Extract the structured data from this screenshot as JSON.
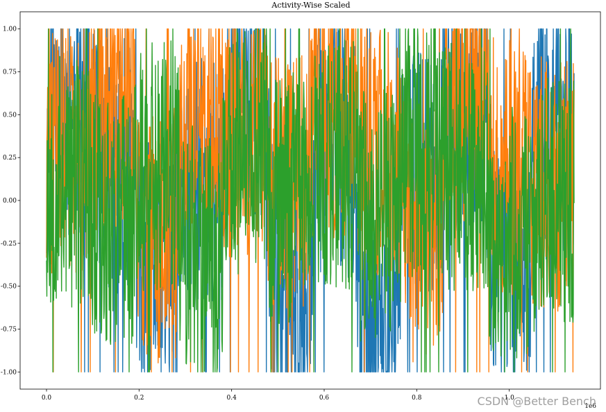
{
  "chart_data": {
    "type": "line",
    "title": "Activity-Wise Scaled",
    "xlabel": "",
    "ylabel": "",
    "x_offset_label": "1e6",
    "xlim": [
      -0.057,
      1.197
    ],
    "ylim": [
      -1.1,
      1.1
    ],
    "xticks": [
      0.0,
      0.2,
      0.4,
      0.6,
      0.8,
      1.0
    ],
    "xtick_labels": [
      "0.0",
      "0.2",
      "0.4",
      "0.6",
      "0.8",
      "1.0"
    ],
    "yticks": [
      1.0,
      0.75,
      0.5,
      0.25,
      0.0,
      -0.25,
      -0.5,
      -0.75,
      -1.0
    ],
    "ytick_labels": [
      "1.00",
      "0.75",
      "0.50",
      "0.25",
      "0.00",
      "-0.25",
      "-0.50",
      "-0.75",
      "-1.00"
    ],
    "grid": false,
    "legend": "none",
    "x_range": [
      0.0,
      1.14
    ],
    "series": [
      {
        "color": "#1f77b4",
        "seed": 11,
        "amplitude_profile": [
          0.55,
          0.2,
          -0.4,
          0.1,
          0.6,
          -0.5,
          0.3,
          -0.7,
          0.2,
          0.5,
          -0.3,
          0.4
        ]
      },
      {
        "color": "#ff7f0e",
        "seed": 29,
        "amplitude_profile": [
          0.3,
          0.6,
          -0.2,
          0.5,
          0.4,
          0.1,
          0.5,
          0.3,
          -0.2,
          0.6,
          0.2,
          0.1
        ]
      },
      {
        "color": "#2ca02c",
        "seed": 53,
        "amplitude_profile": [
          0.1,
          -0.1,
          0.2,
          -0.3,
          0.3,
          0.0,
          0.2,
          -0.1,
          0.3,
          0.2,
          -0.2,
          0.0
        ]
      }
    ]
  },
  "watermark": "CSDN @Better Bench"
}
